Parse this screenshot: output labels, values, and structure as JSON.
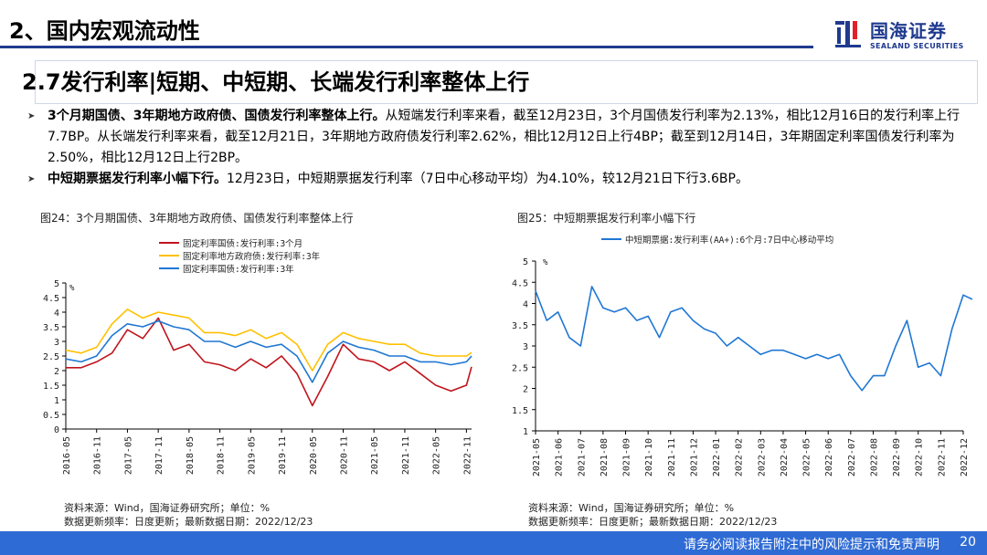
{
  "header": {
    "section_title": "2、国内宏观流动性",
    "logo_cn": "国海证券",
    "logo_en": "SEALAND SECURITIES"
  },
  "title": "2.7发行利率|短期、中短期、长端发行利率整体上行",
  "bullets": [
    {
      "bold": "3个月期国债、3年期地方政府债、国债发行利率整体上行。",
      "text": "从短端发行利率来看，截至12月23日，3个月国债发行利率为2.13%，相比12月16日的发行利率上行7.7BP。从长端发行利率来看，截至12月21日，3年期地方政府债发行利率2.62%，相比12月12日上行4BP；截至到12月14日，3年期固定利率国债发行利率为2.50%，相比12月12日上行2BP。"
    },
    {
      "bold": "中短期票据发行利率小幅下行。",
      "text": "12月23日，中短期票据发行利率（7日中心移动平均）为4.10%，较12月21日下行3.6BP。"
    }
  ],
  "figures": [
    {
      "title": "图24：3个月期国债、3年期地方政府债、国债发行利率整体上行",
      "source": "资料来源：Wind，国海证券研究所；单位：%",
      "update": "数据更新频率：日度更新；最新数据日期：2022/12/23"
    },
    {
      "title": "图25：中短期票据发行利率小幅下行",
      "source": "资料来源：Wind，国海证券研究所；单位：%",
      "update": "数据更新频率：日度更新；最新数据日期：2022/12/23"
    }
  ],
  "footer": {
    "disclaimer": "请务必阅读报告附注中的风险提示和免责声明",
    "page": "20"
  },
  "colors": {
    "brand": "#1f3a8f",
    "footer": "#2f6bd4",
    "red": "#c0141c",
    "yellow": "#ffc000",
    "blue": "#1f77d4"
  },
  "chart_data": [
    {
      "type": "line",
      "unit_label": "%",
      "ylim": [
        0,
        5
      ],
      "yticks": [
        "0",
        "0.5",
        "1",
        "1.5",
        "2",
        "2.5",
        "3",
        "3.5",
        "4",
        "4.5",
        "5"
      ],
      "xticks": [
        "2016-05",
        "2016-11",
        "2017-05",
        "2017-11",
        "2018-05",
        "2018-11",
        "2019-05",
        "2019-11",
        "2020-05",
        "2020-11",
        "2021-05",
        "2021-11",
        "2022-05",
        "2022-11"
      ],
      "legend_position": "top",
      "x": [
        "2016-05",
        "2016-08",
        "2016-11",
        "2017-02",
        "2017-05",
        "2017-08",
        "2017-11",
        "2018-02",
        "2018-05",
        "2018-08",
        "2018-11",
        "2019-02",
        "2019-05",
        "2019-08",
        "2019-11",
        "2020-02",
        "2020-05",
        "2020-08",
        "2020-11",
        "2021-02",
        "2021-05",
        "2021-08",
        "2021-11",
        "2022-02",
        "2022-05",
        "2022-08",
        "2022-11",
        "2022-12"
      ],
      "series": [
        {
          "name": "固定利率国债:发行利率:3个月",
          "color": "#c0141c",
          "values": [
            2.1,
            2.1,
            2.3,
            2.6,
            3.4,
            3.1,
            3.8,
            2.7,
            2.9,
            2.3,
            2.2,
            2.0,
            2.4,
            2.1,
            2.5,
            1.9,
            0.8,
            1.8,
            2.9,
            2.4,
            2.3,
            2.0,
            2.3,
            1.9,
            1.5,
            1.3,
            1.5,
            2.13
          ]
        },
        {
          "name": "固定利率地方政府债:发行利率:3年",
          "color": "#ffc000",
          "values": [
            2.7,
            2.6,
            2.8,
            3.6,
            4.1,
            3.8,
            4.0,
            3.9,
            3.8,
            3.3,
            3.3,
            3.2,
            3.4,
            3.1,
            3.3,
            2.9,
            2.0,
            2.9,
            3.3,
            3.1,
            3.0,
            2.9,
            2.9,
            2.6,
            2.5,
            2.5,
            2.5,
            2.62
          ]
        },
        {
          "name": "固定利率国债:发行利率:3年",
          "color": "#1f77d4",
          "values": [
            2.4,
            2.3,
            2.5,
            3.2,
            3.6,
            3.5,
            3.7,
            3.5,
            3.4,
            3.0,
            3.0,
            2.8,
            3.0,
            2.8,
            2.9,
            2.5,
            1.6,
            2.6,
            3.0,
            2.8,
            2.7,
            2.5,
            2.5,
            2.3,
            2.3,
            2.2,
            2.3,
            2.5
          ]
        }
      ]
    },
    {
      "type": "line",
      "unit_label": "%",
      "ylim": [
        1,
        5
      ],
      "yticks": [
        "1",
        "1.5",
        "2",
        "2.5",
        "3",
        "3.5",
        "4",
        "4.5",
        "5"
      ],
      "xticks": [
        "2021-05",
        "2021-06",
        "2021-07",
        "2021-08",
        "2021-09",
        "2021-10",
        "2021-11",
        "2021-12",
        "2022-01",
        "2022-02",
        "2022-03",
        "2022-04",
        "2022-05",
        "2022-06",
        "2022-07",
        "2022-08",
        "2022-09",
        "2022-10",
        "2022-11",
        "2022-12"
      ],
      "legend_position": "top",
      "x": [
        0,
        0.5,
        1,
        1.5,
        2,
        2.5,
        3,
        3.5,
        4,
        4.5,
        5,
        5.5,
        6,
        6.5,
        7,
        7.5,
        8,
        8.5,
        9,
        9.5,
        10,
        10.5,
        11,
        11.5,
        12,
        12.5,
        13,
        13.5,
        14,
        14.5,
        15,
        15.5,
        16,
        16.5,
        17,
        17.5,
        18,
        18.5,
        19,
        19.4
      ],
      "series": [
        {
          "name": "中短期票据:发行利率(AA+):6个月:7日中心移动平均",
          "color": "#1f77d4",
          "values": [
            4.3,
            3.6,
            3.8,
            3.2,
            3.0,
            4.4,
            3.9,
            3.8,
            3.9,
            3.6,
            3.7,
            3.2,
            3.8,
            3.9,
            3.6,
            3.4,
            3.3,
            3.0,
            3.2,
            3.0,
            2.8,
            2.9,
            2.9,
            2.8,
            2.7,
            2.8,
            2.7,
            2.8,
            2.3,
            1.95,
            2.3,
            2.3,
            3.0,
            3.6,
            2.5,
            2.6,
            2.3,
            3.4,
            4.2,
            4.1
          ]
        }
      ]
    }
  ]
}
